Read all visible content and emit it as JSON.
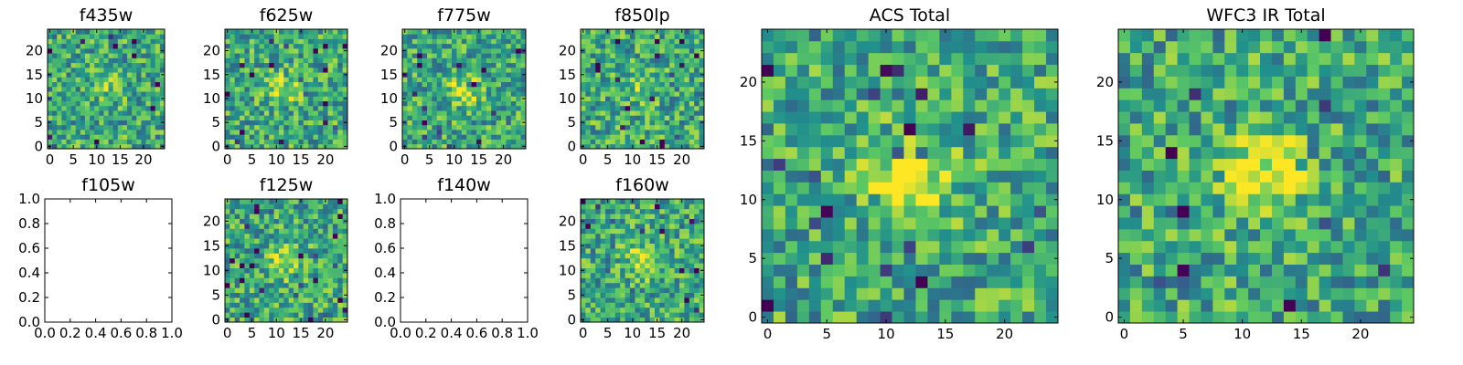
{
  "chart_data": [
    {
      "type": "heatmap",
      "title": "f435w",
      "has_image": true,
      "seed": 11,
      "peak": 0.12,
      "ylim": [
        0,
        24
      ],
      "xticks": [
        "0",
        "5",
        "10",
        "15",
        "20"
      ],
      "yticks": [
        "0",
        "5",
        "10",
        "15",
        "20"
      ]
    },
    {
      "type": "heatmap",
      "title": "f625w",
      "has_image": true,
      "seed": 23,
      "peak": 0.25,
      "ylim": [
        0,
        24
      ],
      "xticks": [
        "0",
        "5",
        "10",
        "15",
        "20"
      ],
      "yticks": [
        "0",
        "5",
        "10",
        "15",
        "20"
      ]
    },
    {
      "type": "heatmap",
      "title": "f775w",
      "has_image": true,
      "seed": 37,
      "peak": 0.32,
      "ylim": [
        0,
        24
      ],
      "xticks": [
        "0",
        "5",
        "10",
        "15",
        "20"
      ],
      "yticks": [
        "0",
        "5",
        "10",
        "15",
        "20"
      ]
    },
    {
      "type": "heatmap",
      "title": "f850lp",
      "has_image": true,
      "seed": 41,
      "peak": 0.22,
      "ylim": [
        0,
        24
      ],
      "xticks": [
        "0",
        "5",
        "10",
        "15",
        "20"
      ],
      "yticks": [
        "0",
        "5",
        "10",
        "15",
        "20"
      ]
    },
    {
      "type": "heatmap",
      "title": "f105w",
      "has_image": false,
      "xlim": [
        0,
        1
      ],
      "ylim": [
        0,
        1
      ],
      "xticks": [
        "0.0",
        "0.2",
        "0.4",
        "0.6",
        "0.8",
        "1.0"
      ],
      "yticks": [
        "0.0",
        "0.2",
        "0.4",
        "0.6",
        "0.8",
        "1.0"
      ]
    },
    {
      "type": "heatmap",
      "title": "f125w",
      "has_image": true,
      "seed": 53,
      "peak": 0.3,
      "ylim": [
        0,
        24
      ],
      "xticks": [
        "0",
        "5",
        "10",
        "15",
        "20"
      ],
      "yticks": [
        "0",
        "5",
        "10",
        "15",
        "20"
      ]
    },
    {
      "type": "heatmap",
      "title": "f140w",
      "has_image": false,
      "xlim": [
        0,
        1
      ],
      "ylim": [
        0,
        1
      ],
      "xticks": [
        "0.0",
        "0.2",
        "0.4",
        "0.6",
        "0.8",
        "1.0"
      ],
      "yticks": [
        "0.0",
        "0.2",
        "0.4",
        "0.6",
        "0.8",
        "1.0"
      ]
    },
    {
      "type": "heatmap",
      "title": "f160w",
      "has_image": true,
      "seed": 67,
      "peak": 0.3,
      "ylim": [
        0,
        24
      ],
      "xticks": [
        "0",
        "5",
        "10",
        "15",
        "20"
      ],
      "yticks": [
        "0",
        "5",
        "10",
        "15",
        "20"
      ]
    },
    {
      "type": "heatmap",
      "title": "ACS Total",
      "has_image": true,
      "seed": 79,
      "peak": 0.4,
      "ylim": [
        0,
        24
      ],
      "xticks": [
        "0",
        "5",
        "10",
        "15",
        "20"
      ],
      "yticks": [
        "0",
        "5",
        "10",
        "15",
        "20"
      ]
    },
    {
      "type": "heatmap",
      "title": "WFC3 IR Total",
      "has_image": true,
      "seed": 97,
      "peak": 0.38,
      "ylim": [
        0,
        24
      ],
      "xticks": [
        "0",
        "5",
        "10",
        "15",
        "20"
      ],
      "yticks": [
        "0",
        "5",
        "10",
        "15",
        "20"
      ]
    }
  ],
  "grid_size": 25,
  "colormap": [
    "#440154",
    "#3b528b",
    "#21918c",
    "#5ec962",
    "#fde725"
  ]
}
